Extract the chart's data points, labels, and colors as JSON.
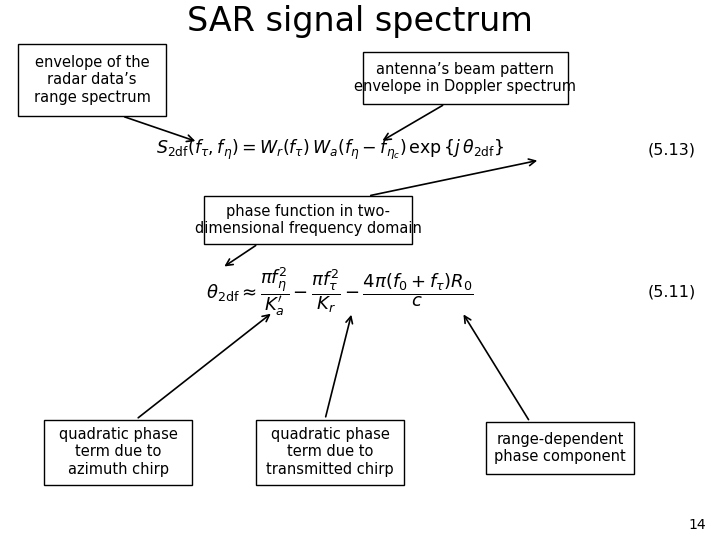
{
  "title": "SAR signal spectrum",
  "title_fontsize": 24,
  "bg_color": "#ffffff",
  "eq1": "$S_{2\\mathrm{df}}(f_{\\tau}, f_{\\eta}) = W_r(f_{\\tau})\\, W_a(f_{\\eta} - f_{\\eta_c})\\, \\exp\\{j\\,\\theta_{2\\mathrm{df}}\\}$",
  "eq1_num": "(5.13)",
  "eq2": "$\\theta_{2\\mathrm{df}} \\approx \\dfrac{\\pi f_{\\eta}^2}{K_a^{\\prime}} - \\dfrac{\\pi f_{\\tau}^2}{K_r} - \\dfrac{4\\pi(f_0 + f_{\\tau})R_0}{c}$",
  "eq2_num": "(5.11)",
  "box1_text": "envelope of the\nradar data’s\nrange spectrum",
  "box2_text": "antenna’s beam pattern\nenvelope in Doppler spectrum",
  "box3_text": "phase function in two-\ndimensional frequency domain",
  "box4_text": "quadratic phase\nterm due to\nazimuth chirp",
  "box5_text": "quadratic phase\nterm due to\ntransmitted chirp",
  "box6_text": "range-dependent\nphase component",
  "page_num": "14",
  "font_size_boxes": 10.5,
  "font_size_eq": 12.5,
  "font_size_eq_num": 11.5
}
